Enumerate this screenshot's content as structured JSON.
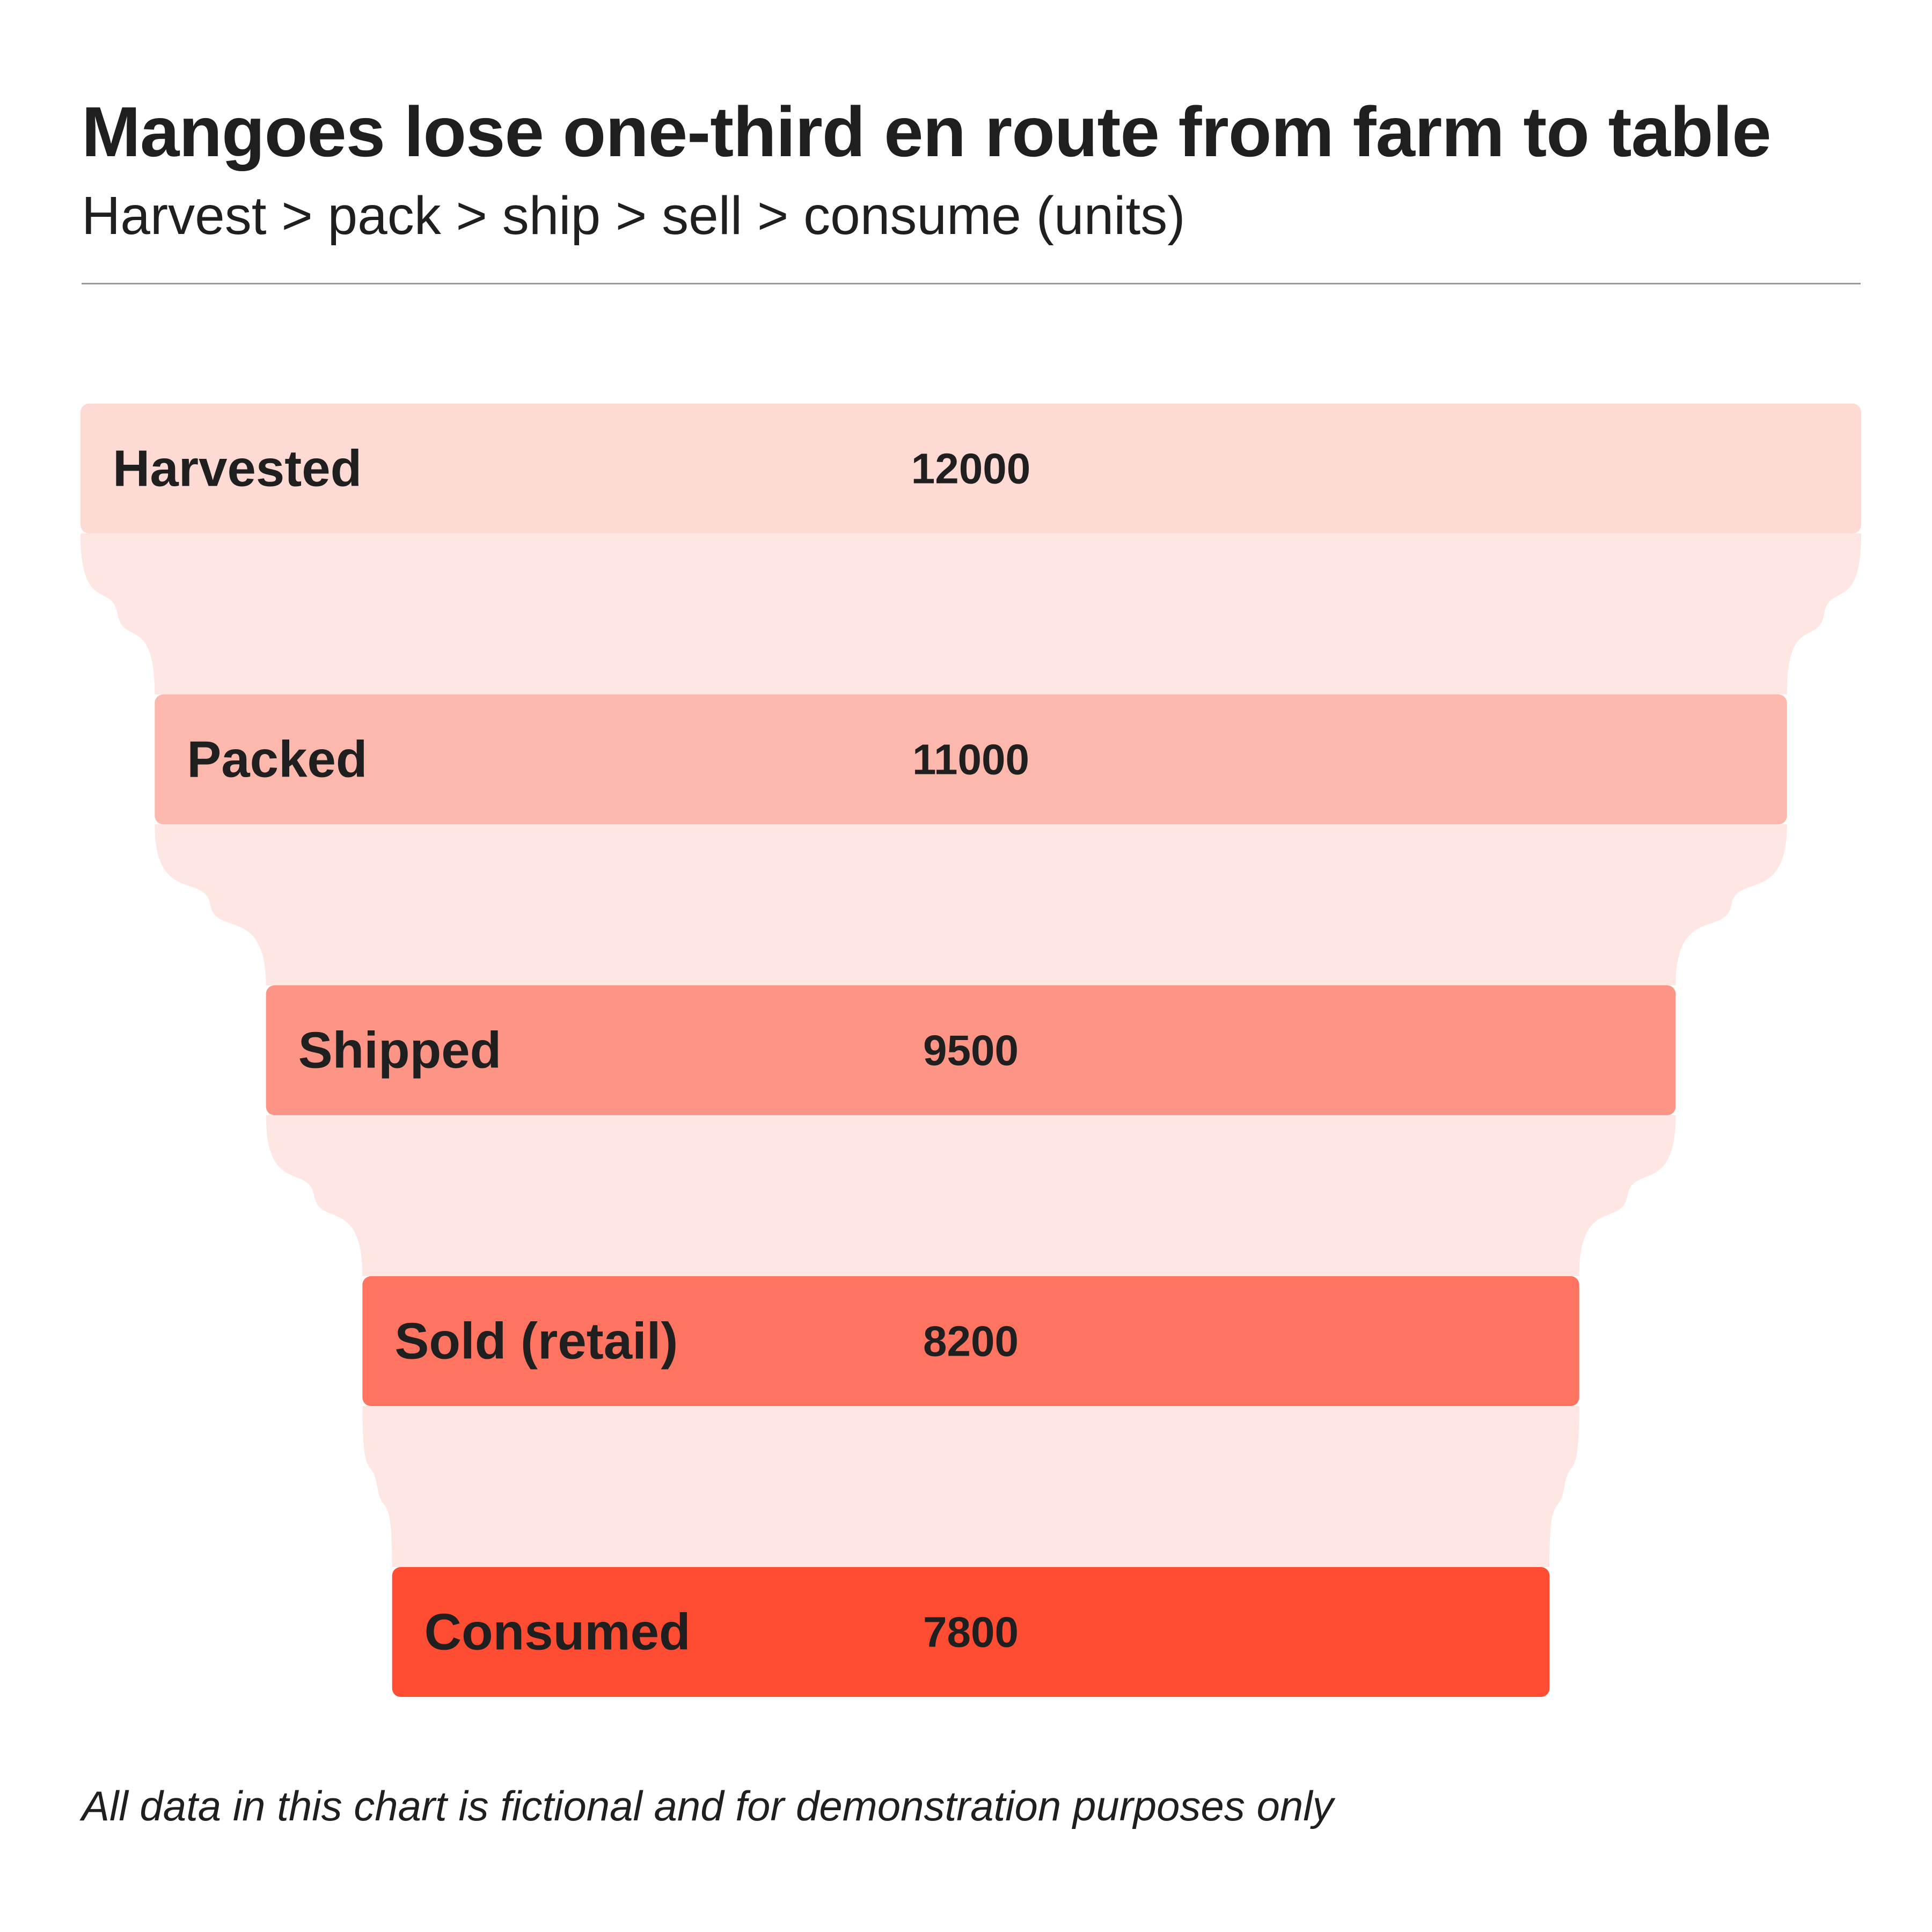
{
  "chart_data": {
    "type": "funnel",
    "title": "Mangoes lose one-third en route from farm to table",
    "subtitle": "Harvest > pack > ship > sell > consume (units)",
    "categories": [
      "Harvested",
      "Packed",
      "Shipped",
      "Sold (retail)",
      "Consumed"
    ],
    "values": [
      12000,
      11000,
      9500,
      8200,
      7800
    ],
    "colors": [
      "#fedad4",
      "#fdb8ad",
      "#fd9586",
      "#ff7461",
      "#ff4d33"
    ],
    "connector_color": "#fee6e2",
    "footnote": "All data in this chart is fictional and for demonstration purposes only"
  }
}
